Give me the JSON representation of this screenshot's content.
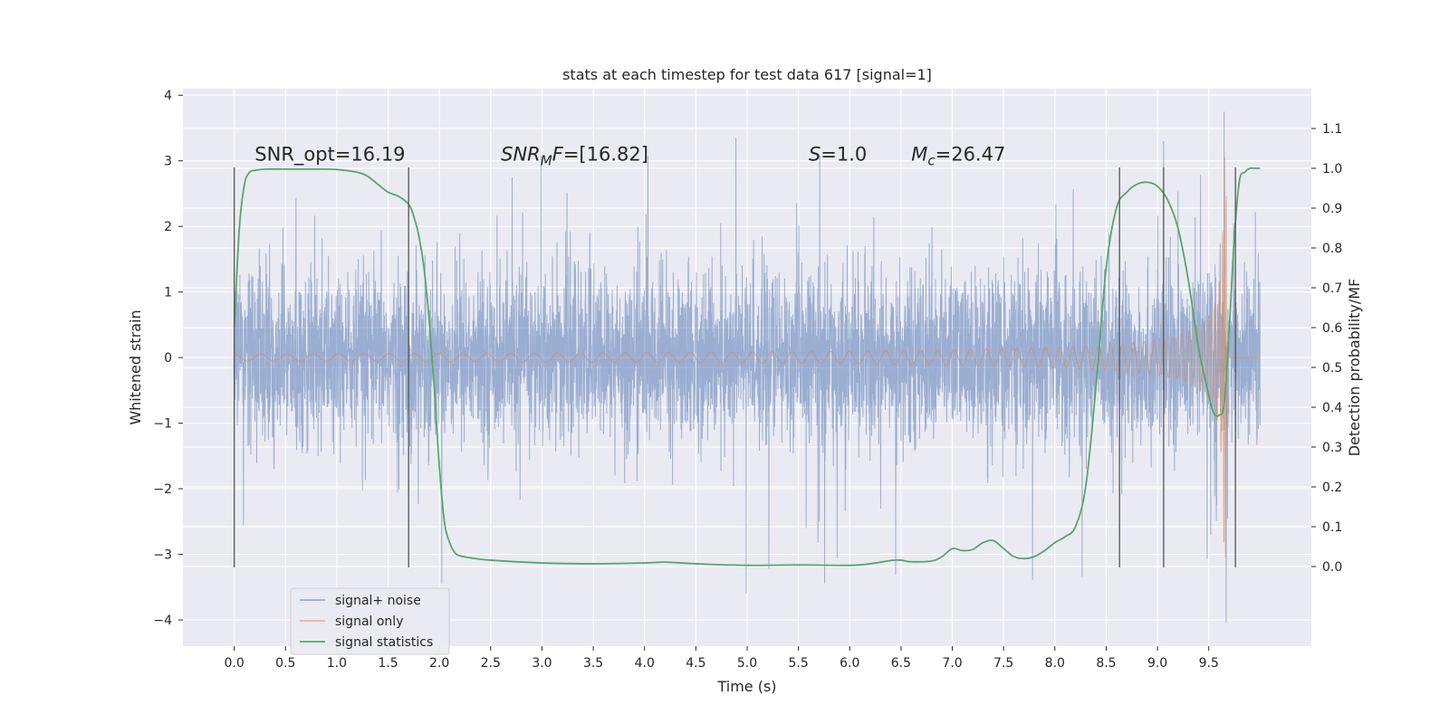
{
  "chart_data": {
    "type": "line",
    "title": "stats at each timestep for test data 617 [signal=1]",
    "xlabel": "Time (s)",
    "ylabel_left": "Whitened strain",
    "ylabel_right": "Detection probability/MF",
    "xlim": [
      -0.5,
      10.5
    ],
    "ylim_left": [
      -4.4,
      4.1
    ],
    "ylim_right": [
      -0.2,
      1.2
    ],
    "xticks": [
      "0.0",
      "0.5",
      "1.0",
      "1.5",
      "2.0",
      "2.5",
      "3.0",
      "3.5",
      "4.0",
      "4.5",
      "5.0",
      "5.5",
      "6.0",
      "6.5",
      "7.0",
      "7.5",
      "8.0",
      "8.5",
      "9.0",
      "9.5"
    ],
    "yticks_left": [
      "−4",
      "−3",
      "−2",
      "−1",
      "0",
      "1",
      "2",
      "3",
      "4"
    ],
    "yticks_right": [
      "0.0",
      "0.1",
      "0.2",
      "0.3",
      "0.4",
      "0.5",
      "0.6",
      "0.7",
      "0.8",
      "0.9",
      "1.0",
      "1.1"
    ],
    "grid": true,
    "legend_position": "lower-left",
    "annotations": [
      {
        "parts": [
          {
            "t": "SNR_opt=16.19",
            "i": false
          }
        ],
        "x": 0.2,
        "y": 3.0
      },
      {
        "parts": [
          {
            "t": "SNR",
            "i": true
          },
          {
            "t": "M",
            "i": true,
            "sub": true
          },
          {
            "t": "F",
            "i": true
          },
          {
            "t": "=[16.82]",
            "i": false
          }
        ],
        "x": 2.6,
        "y": 3.0
      },
      {
        "parts": [
          {
            "t": "S",
            "i": true
          },
          {
            "t": "=1.0",
            "i": false
          }
        ],
        "x": 5.6,
        "y": 3.0
      },
      {
        "parts": [
          {
            "t": "M",
            "i": true
          },
          {
            "t": "c",
            "i": true,
            "sub": true
          },
          {
            "t": "=26.47",
            "i": false
          }
        ],
        "x": 6.6,
        "y": 3.0
      }
    ],
    "vlines": [
      {
        "x": 0.0,
        "ymin": -3.2,
        "ymax": 2.9
      },
      {
        "x": 1.7,
        "ymin": -3.2,
        "ymax": 2.9
      },
      {
        "x": 8.63,
        "ymin": -3.2,
        "ymax": 2.9
      },
      {
        "x": 9.06,
        "ymin": -3.2,
        "ymax": 2.9
      },
      {
        "x": 9.76,
        "ymin": -3.2,
        "ymax": 2.9
      }
    ],
    "series": [
      {
        "name": "signal+ noise",
        "color": "#4c72b0",
        "axis": "left",
        "kind": "noise",
        "x_range": [
          0.0,
          10.0
        ],
        "typical_range": [
          -1.3,
          1.3
        ],
        "extreme_range": [
          -4.05,
          3.75
        ]
      },
      {
        "name": "signal only",
        "color": "#dd8452",
        "axis": "left",
        "kind": "chirp",
        "x_range": [
          0.0,
          10.0
        ],
        "merger_time": 9.66,
        "peak_amplitude": 3.2
      },
      {
        "name": "signal statistics",
        "color": "#55a868",
        "axis": "right",
        "x": [
          0.0,
          0.05,
          0.1,
          0.15,
          0.2,
          0.3,
          0.5,
          0.8,
          1.0,
          1.2,
          1.3,
          1.4,
          1.5,
          1.6,
          1.7,
          1.75,
          1.8,
          1.85,
          1.9,
          1.95,
          2.0,
          2.05,
          2.1,
          2.15,
          2.2,
          2.3,
          2.5,
          3.0,
          3.5,
          4.0,
          4.2,
          4.5,
          5.0,
          5.5,
          6.0,
          6.2,
          6.4,
          6.5,
          6.6,
          6.8,
          6.9,
          7.0,
          7.1,
          7.2,
          7.3,
          7.4,
          7.5,
          7.6,
          7.7,
          7.8,
          7.9,
          8.0,
          8.1,
          8.2,
          8.3,
          8.4,
          8.5,
          8.6,
          8.7,
          8.8,
          8.9,
          9.0,
          9.1,
          9.2,
          9.3,
          9.4,
          9.5,
          9.55,
          9.6,
          9.65,
          9.7,
          9.75,
          9.8,
          9.85,
          9.9,
          9.95,
          10.0
        ],
        "values": [
          0.6,
          0.85,
          0.96,
          0.99,
          0.995,
          0.998,
          0.998,
          0.998,
          0.997,
          0.99,
          0.98,
          0.96,
          0.94,
          0.93,
          0.91,
          0.88,
          0.83,
          0.75,
          0.62,
          0.45,
          0.25,
          0.11,
          0.06,
          0.035,
          0.027,
          0.022,
          0.016,
          0.009,
          0.007,
          0.009,
          0.011,
          0.007,
          0.003,
          0.004,
          0.003,
          0.007,
          0.015,
          0.016,
          0.012,
          0.014,
          0.025,
          0.045,
          0.04,
          0.043,
          0.06,
          0.065,
          0.045,
          0.025,
          0.02,
          0.025,
          0.04,
          0.06,
          0.075,
          0.1,
          0.2,
          0.45,
          0.75,
          0.9,
          0.94,
          0.96,
          0.965,
          0.955,
          0.92,
          0.85,
          0.72,
          0.55,
          0.43,
          0.385,
          0.38,
          0.41,
          0.6,
          0.83,
          0.97,
          0.99,
          1.0,
          1.0,
          1.0
        ]
      }
    ]
  }
}
